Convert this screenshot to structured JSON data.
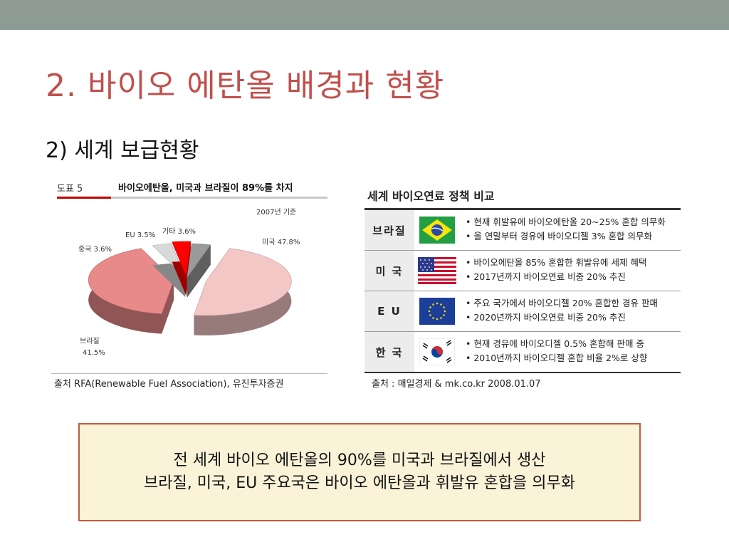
{
  "slide": {
    "title": "2. 바이오 에탄올 배경과 현황",
    "subtitle": "2) 세계 보급현황"
  },
  "left_figure": {
    "tag": "도표 5",
    "title": "바이오에탄올, 미국과 브라질이 89%를 차지",
    "year_note": "2007년 기준",
    "source": "출처 RFA(Renewable Fuel Association), 유진투자증권"
  },
  "chart_data": {
    "type": "pie",
    "title": "바이오에탄올, 미국과 브라질이 89%를 차지",
    "slices": [
      {
        "label": "미국",
        "value": 47.8,
        "color": "#f4c7c7"
      },
      {
        "label": "브라질",
        "value": 41.5,
        "color": "#e88a8a"
      },
      {
        "label": "중국",
        "value": 3.6,
        "color": "#d9d9d9"
      },
      {
        "label": "EU",
        "value": 3.5,
        "color": "#ff0000"
      },
      {
        "label": "기타",
        "value": 3.6,
        "color": "#9a9a9a"
      }
    ],
    "labels": {
      "usa": "미국 47.8%",
      "brazil_name": "브라질",
      "brazil_value": "41.5%",
      "china": "중국 3.6%",
      "eu": "EU 3.5%",
      "other": "기타 3.6%"
    }
  },
  "right_figure": {
    "title": "세계 바이오연료 정책 비교",
    "source": "출처 :  매일경제 & mk.co.kr 2008.01.07",
    "rows": [
      {
        "country": "브라질",
        "flag": "brazil-flag",
        "lines": [
          "• 현재 휘발유에 바이오에탄올 20~25% 혼합 의무화",
          "• 올 연말부터 경유에 바이오디젤 3% 혼합 의무화"
        ]
      },
      {
        "country": "미 국",
        "flag": "usa-flag",
        "lines": [
          "• 바이오에탄올 85% 혼합한 휘발유에 세제 혜택",
          "• 2017년까지 바이오연료 비중 20% 추진"
        ]
      },
      {
        "country": "E U",
        "flag": "eu-flag",
        "lines": [
          "• 주요 국가에서 바이오디젤 20% 혼합한 경유 판매",
          "• 2020년까지 바이오연료 비중 20% 추진"
        ]
      },
      {
        "country": "한 국",
        "flag": "korea-flag",
        "lines": [
          "• 현재 경유에 바이오디젤 0.5% 혼합해 판매 중",
          "• 2010년까지 바이오디젤 혼합 비율 2%로 상향"
        ]
      }
    ]
  },
  "summary": {
    "line1": "전 세계 바이오 에탄올의 90%를 미국과 브라질에서 생산",
    "line2": "브라질, 미국, EU 주요국은 바이오 에탄올과 휘발유 혼합을 의무화"
  },
  "colors": {
    "top_bar": "#8e9b94",
    "title": "#c0504d",
    "summary_bg": "#faf3d8",
    "summary_border": "#c55a3b"
  }
}
